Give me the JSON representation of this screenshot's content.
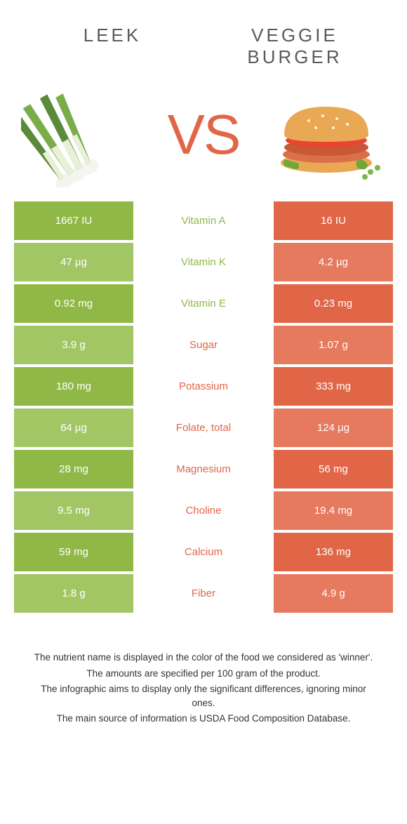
{
  "colors": {
    "green": "#90b847",
    "green_light": "#a3c665",
    "orange": "#e06647",
    "orange_light": "#e67a5e",
    "vs_color": "#e06647",
    "title_color": "#5a5a5a"
  },
  "header": {
    "left": "Leek",
    "right": "Veggie burger"
  },
  "vs_label": "VS",
  "rows": [
    {
      "left": "1667 IU",
      "label": "Vitamin A",
      "right": "16 IU",
      "winner": "left"
    },
    {
      "left": "47 µg",
      "label": "Vitamin K",
      "right": "4.2 µg",
      "winner": "left"
    },
    {
      "left": "0.92 mg",
      "label": "Vitamin E",
      "right": "0.23 mg",
      "winner": "left"
    },
    {
      "left": "3.9 g",
      "label": "Sugar",
      "right": "1.07 g",
      "winner": "right"
    },
    {
      "left": "180 mg",
      "label": "Potassium",
      "right": "333 mg",
      "winner": "right"
    },
    {
      "left": "64 µg",
      "label": "Folate, total",
      "right": "124 µg",
      "winner": "right"
    },
    {
      "left": "28 mg",
      "label": "Magnesium",
      "right": "56 mg",
      "winner": "right"
    },
    {
      "left": "9.5 mg",
      "label": "Choline",
      "right": "19.4 mg",
      "winner": "right"
    },
    {
      "left": "59 mg",
      "label": "Calcium",
      "right": "136 mg",
      "winner": "right"
    },
    {
      "left": "1.8 g",
      "label": "Fiber",
      "right": "4.9 g",
      "winner": "right"
    }
  ],
  "footer": [
    "The nutrient name is displayed in the color of the food we considered as 'winner'.",
    "The amounts are specified per 100 gram of the product.",
    "The infographic aims to display only the significant differences, ignoring minor ones.",
    "The main source of information is USDA Food Composition Database."
  ]
}
